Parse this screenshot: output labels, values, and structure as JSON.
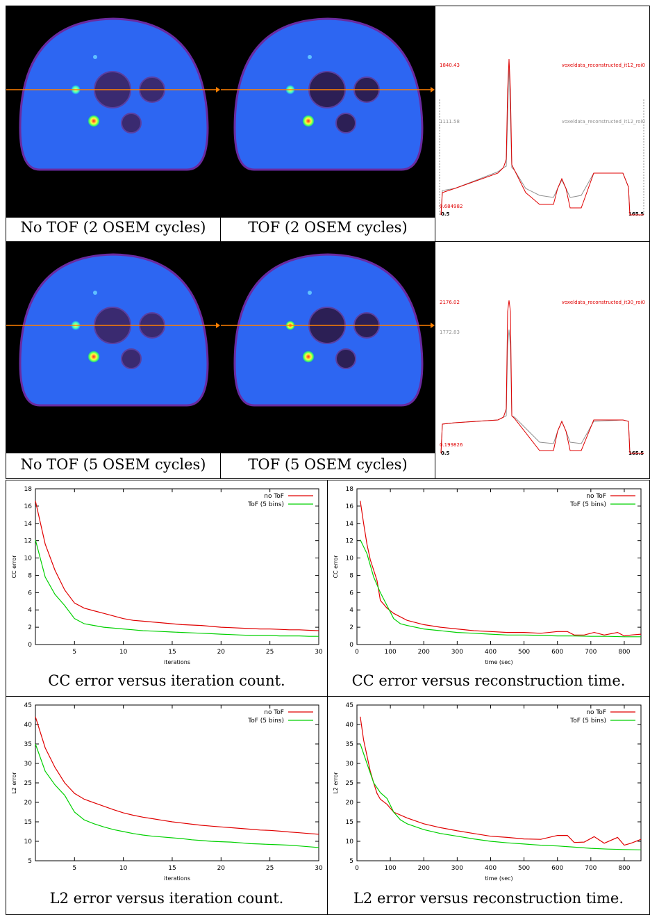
{
  "images": {
    "row1": {
      "left_caption": "No TOF (2 OSEM cycles)",
      "mid_caption": "TOF (2 OSEM cycles)",
      "profile": {
        "max_red": "1840.43",
        "max_gray": "1111.58",
        "min_red": "0.684982",
        "x_start": "0.5",
        "x_end": "165.5",
        "legend_red": "voxeldata_reconstructed_it12_roi0",
        "legend_gray": "voxeldata_reconstructed_it12_roi0"
      }
    },
    "row2": {
      "left_caption": "No TOF (5 OSEM cycles)",
      "mid_caption": "TOF (5 OSEM cycles)",
      "profile": {
        "max_red": "2176.02",
        "max_gray": "1772.83",
        "min_red": "0.199826",
        "x_start": "0.5",
        "x_end": "165.5",
        "legend_red": "voxeldata_reconstructed_it30_roi0",
        "legend_gray": ""
      }
    }
  },
  "colors": {
    "no_tof": "#e00000",
    "tof": "#00d000",
    "arrow": "#ff8000",
    "gray": "#909090"
  },
  "chart_data": [
    {
      "type": "line",
      "caption": "CC error versus iteration count.",
      "xlabel": "iterations",
      "ylabel": "CC error",
      "xlim": [
        1,
        30
      ],
      "ylim": [
        0,
        18
      ],
      "xticks": [
        5,
        10,
        15,
        20,
        25,
        30
      ],
      "yticks": [
        0,
        2,
        4,
        6,
        8,
        10,
        12,
        14,
        16,
        18
      ],
      "legend_position": "top-right",
      "series": [
        {
          "name": "no ToF",
          "color": "#e00000",
          "x": [
            1,
            2,
            3,
            4,
            5,
            6,
            7,
            8,
            9,
            10,
            11,
            12,
            13,
            14,
            15,
            16,
            17,
            18,
            19,
            20,
            21,
            22,
            23,
            24,
            25,
            26,
            27,
            28,
            29,
            30
          ],
          "y": [
            16.6,
            11.6,
            8.6,
            6.3,
            4.8,
            4.2,
            3.9,
            3.6,
            3.3,
            3.0,
            2.8,
            2.7,
            2.6,
            2.5,
            2.4,
            2.3,
            2.25,
            2.2,
            2.1,
            2.0,
            1.95,
            1.9,
            1.85,
            1.8,
            1.8,
            1.75,
            1.7,
            1.7,
            1.65,
            1.6
          ]
        },
        {
          "name": "ToF (5 bins)",
          "color": "#00d000",
          "x": [
            1,
            2,
            3,
            4,
            5,
            6,
            7,
            8,
            9,
            10,
            11,
            12,
            13,
            14,
            15,
            16,
            17,
            18,
            19,
            20,
            21,
            22,
            23,
            24,
            25,
            26,
            27,
            28,
            29,
            30
          ],
          "y": [
            12.1,
            7.8,
            5.8,
            4.5,
            3.0,
            2.4,
            2.2,
            2.0,
            1.9,
            1.8,
            1.7,
            1.6,
            1.55,
            1.5,
            1.45,
            1.4,
            1.35,
            1.3,
            1.25,
            1.2,
            1.15,
            1.1,
            1.05,
            1.05,
            1.05,
            1.0,
            1.0,
            1.0,
            0.95,
            0.95
          ]
        }
      ]
    },
    {
      "type": "line",
      "caption": "CC error versus reconstruction time.",
      "xlabel": "time (sec)",
      "ylabel": "CC error",
      "xlim": [
        0,
        850
      ],
      "ylim": [
        0,
        18
      ],
      "xticks": [
        0,
        100,
        200,
        300,
        400,
        500,
        600,
        700,
        800
      ],
      "yticks": [
        0,
        2,
        4,
        6,
        8,
        10,
        12,
        14,
        16,
        18
      ],
      "legend_position": "top-right",
      "series": [
        {
          "name": "no ToF",
          "color": "#e00000",
          "x": [
            10,
            20,
            30,
            40,
            50,
            60,
            70,
            90,
            110,
            150,
            200,
            250,
            300,
            350,
            400,
            450,
            500,
            550,
            600,
            630,
            650,
            680,
            710,
            740,
            780,
            800,
            820,
            850
          ],
          "y": [
            16.6,
            14,
            11.6,
            9.8,
            8.6,
            7.4,
            5.1,
            4.2,
            3.6,
            2.8,
            2.3,
            2.0,
            1.8,
            1.6,
            1.5,
            1.4,
            1.4,
            1.3,
            1.5,
            1.5,
            1.1,
            1.1,
            1.4,
            1.1,
            1.4,
            1.0,
            1.1,
            1.2
          ]
        },
        {
          "name": "ToF (5 bins)",
          "color": "#00d000",
          "x": [
            10,
            30,
            50,
            70,
            90,
            110,
            130,
            150,
            200,
            250,
            300,
            350,
            400,
            450,
            500,
            550,
            600,
            650,
            700,
            750,
            800,
            850
          ],
          "y": [
            12.1,
            10.5,
            7.8,
            6.0,
            4.5,
            3.0,
            2.4,
            2.2,
            1.8,
            1.6,
            1.4,
            1.3,
            1.2,
            1.1,
            1.1,
            1.05,
            1.0,
            1.0,
            0.95,
            0.95,
            0.9,
            0.9
          ]
        }
      ]
    },
    {
      "type": "line",
      "caption": "L2 error versus iteration count.",
      "xlabel": "iterations",
      "ylabel": "L2 error",
      "xlim": [
        1,
        30
      ],
      "ylim": [
        5,
        45
      ],
      "xticks": [
        5,
        10,
        15,
        20,
        25,
        30
      ],
      "yticks": [
        5,
        10,
        15,
        20,
        25,
        30,
        35,
        40,
        45
      ],
      "legend_position": "top-right",
      "series": [
        {
          "name": "no ToF",
          "color": "#e00000",
          "x": [
            1,
            2,
            3,
            4,
            5,
            6,
            7,
            8,
            9,
            10,
            11,
            12,
            13,
            14,
            15,
            16,
            17,
            18,
            19,
            20,
            21,
            22,
            23,
            24,
            25,
            26,
            27,
            28,
            29,
            30
          ],
          "y": [
            42,
            34,
            29,
            25,
            22.3,
            20.8,
            19.9,
            19.0,
            18.1,
            17.3,
            16.7,
            16.2,
            15.8,
            15.4,
            15.0,
            14.7,
            14.4,
            14.1,
            13.9,
            13.7,
            13.5,
            13.3,
            13.1,
            12.9,
            12.8,
            12.6,
            12.4,
            12.2,
            12.0,
            11.8
          ]
        },
        {
          "name": "ToF (5 bins)",
          "color": "#00d000",
          "x": [
            1,
            2,
            3,
            4,
            5,
            6,
            7,
            8,
            9,
            10,
            11,
            12,
            13,
            14,
            15,
            16,
            17,
            18,
            19,
            20,
            21,
            22,
            23,
            24,
            25,
            26,
            27,
            28,
            29,
            30
          ],
          "y": [
            35,
            28,
            24.5,
            21.8,
            17.5,
            15.5,
            14.5,
            13.7,
            13.0,
            12.5,
            12.0,
            11.6,
            11.3,
            11.1,
            10.9,
            10.7,
            10.4,
            10.2,
            10.0,
            9.9,
            9.8,
            9.6,
            9.4,
            9.3,
            9.2,
            9.1,
            9.0,
            8.8,
            8.6,
            8.4
          ]
        }
      ]
    },
    {
      "type": "line",
      "caption": "L2 error versus reconstruction time.",
      "xlabel": "time (sec)",
      "ylabel": "L2 error",
      "xlim": [
        0,
        850
      ],
      "ylim": [
        5,
        45
      ],
      "xticks": [
        0,
        100,
        200,
        300,
        400,
        500,
        600,
        700,
        800
      ],
      "yticks": [
        5,
        10,
        15,
        20,
        25,
        30,
        35,
        40,
        45
      ],
      "legend_position": "top-right",
      "series": [
        {
          "name": "no ToF",
          "color": "#e00000",
          "x": [
            10,
            20,
            30,
            40,
            50,
            60,
            70,
            90,
            110,
            150,
            200,
            250,
            300,
            350,
            400,
            450,
            500,
            550,
            600,
            630,
            650,
            680,
            710,
            740,
            780,
            800,
            820,
            850
          ],
          "y": [
            42,
            36,
            32,
            28,
            25,
            22.3,
            20.8,
            19.5,
            17.5,
            16.0,
            14.5,
            13.5,
            12.7,
            12.0,
            11.3,
            11.0,
            10.6,
            10.5,
            11.5,
            11.5,
            9.7,
            9.8,
            11.2,
            9.5,
            11.0,
            9.0,
            9.5,
            10.5
          ]
        },
        {
          "name": "ToF (5 bins)",
          "color": "#00d000",
          "x": [
            10,
            30,
            50,
            70,
            90,
            110,
            130,
            150,
            200,
            250,
            300,
            350,
            400,
            450,
            500,
            550,
            600,
            650,
            700,
            750,
            800,
            850
          ],
          "y": [
            35,
            30,
            25,
            22.5,
            21.0,
            17.5,
            15.5,
            14.5,
            13.0,
            12.0,
            11.3,
            10.6,
            10.0,
            9.6,
            9.3,
            9.0,
            8.8,
            8.5,
            8.2,
            8.0,
            7.9,
            7.8
          ]
        }
      ]
    }
  ]
}
